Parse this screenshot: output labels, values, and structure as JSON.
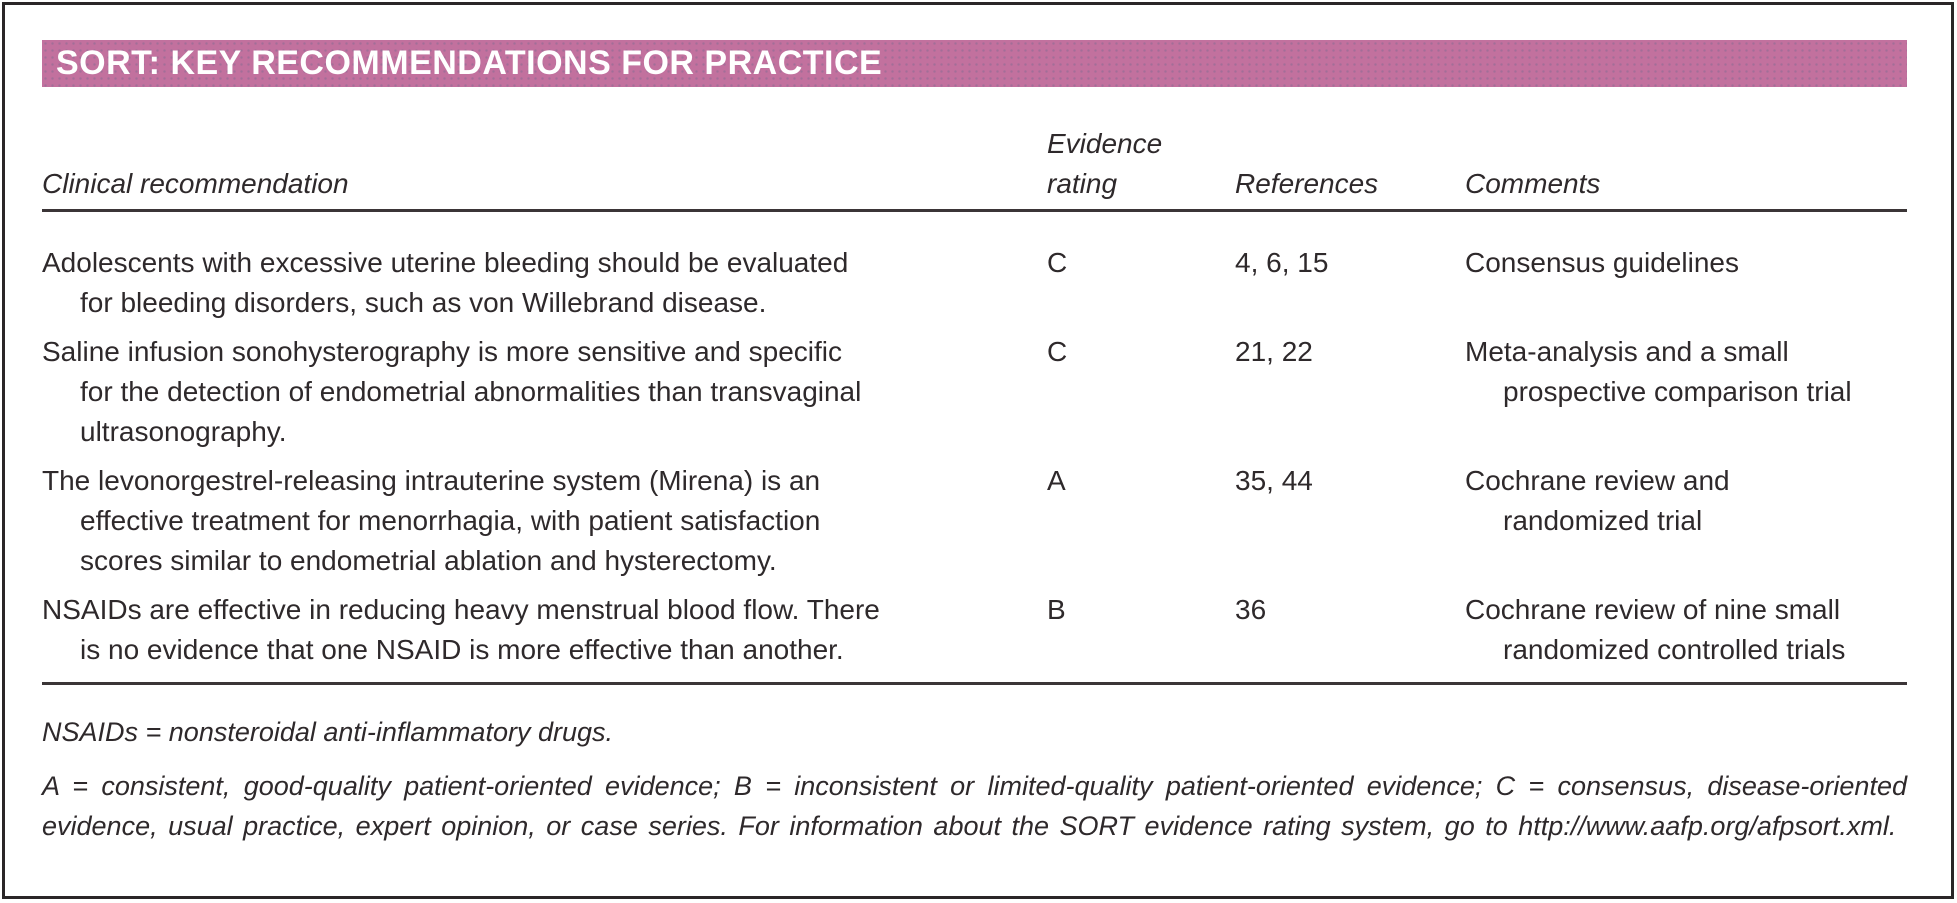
{
  "colors": {
    "header_bar": "#c2719e",
    "text": "#2e292b",
    "rule": "#3b3537"
  },
  "title_bar": {
    "label": "SORT: KEY RECOMMENDATIONS FOR PRACTICE"
  },
  "table": {
    "headers": {
      "clinical_recommendation": "Clinical recommendation",
      "evidence_rating": "Evidence\nrating",
      "references": "References",
      "comments": "Comments"
    },
    "rows": [
      {
        "recommendation": "Adolescents with excessive uterine bleeding should be evaluated\nfor bleeding disorders, such as von Willebrand disease.",
        "evidence_rating": "C",
        "references": "4, 6, 15",
        "comments": "Consensus guidelines"
      },
      {
        "recommendation": "Saline infusion sonohysterography is more sensitive and specific\nfor the detection of endometrial abnormalities than transvaginal\nultrasonography.",
        "evidence_rating": "C",
        "references": "21, 22",
        "comments": "Meta-analysis and a small\nprospective comparison trial"
      },
      {
        "recommendation": "The levonorgestrel-releasing intrauterine system (Mirena) is an\neffective treatment for menorrhagia, with patient satisfaction\nscores similar to endometrial ablation and hysterectomy.",
        "evidence_rating": "A",
        "references": "35, 44",
        "comments": "Cochrane review and\nrandomized trial"
      },
      {
        "recommendation": "NSAIDs are effective in reducing heavy menstrual blood flow. There\nis no evidence that one NSAID is more effective than another.",
        "evidence_rating": "B",
        "references": "36",
        "comments": "Cochrane review of nine small\nrandomized controlled trials"
      }
    ]
  },
  "footnotes": {
    "abbreviations": "NSAIDs = nonsteroidal anti-inflammatory drugs.",
    "rating_key": "A = consistent, good-quality patient-oriented evidence; B = inconsistent or limited-quality patient-oriented evidence; C = consensus, disease-oriented evidence, usual practice, expert opinion, or case series. For information about the SORT evidence rating system, go to http://www.aafp.org/afpsort.xml."
  }
}
